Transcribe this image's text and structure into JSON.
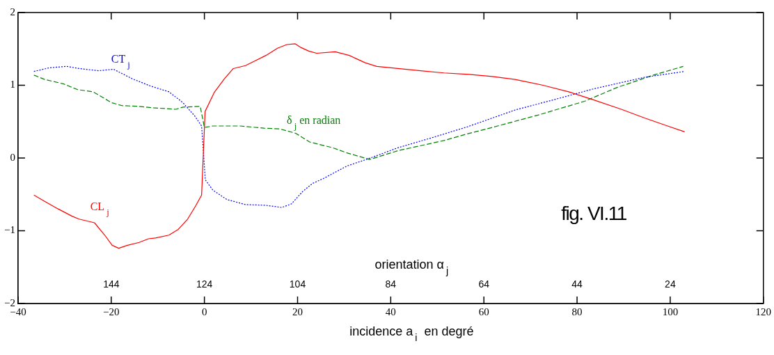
{
  "chart_data": {
    "type": "line",
    "xlabel": "incidence a$_{i}$  en degré",
    "x2label": "orientation α$_{j}$",
    "xlim": [
      -40,
      120
    ],
    "xticks": [
      {
        "value": -40,
        "label": "−40"
      },
      {
        "value": -20,
        "label": "−20"
      },
      0,
      20,
      40,
      60,
      80,
      100,
      120
    ],
    "x2lim": [
      164,
      4
    ],
    "x2ticks": [
      144,
      124,
      104,
      84,
      64,
      44,
      24
    ],
    "ylim": [
      -2,
      2
    ],
    "yticks": [
      {
        "value": -2,
        "label": "−2"
      },
      {
        "value": -1,
        "label": "−1"
      },
      0,
      1,
      2
    ],
    "grid": false,
    "legend": false,
    "marker": "none",
    "annotations": [
      "fig. VI.11"
    ],
    "series": [
      {
        "name": "CL$_{j}$",
        "color": "#ff0000",
        "line_style": "solid",
        "x": [
          -36.6,
          -33.9,
          -31.4,
          -28.4,
          -26.9,
          -23.6,
          -21.4,
          -19.8,
          -18.4,
          -16.5,
          -14,
          -12,
          -10.5,
          -7.6,
          -5.6,
          -3.6,
          -1.9,
          -0.6,
          0.15,
          2.1,
          4.3,
          6.2,
          8.8,
          10.7,
          13.2,
          15.7,
          17.7,
          19.5,
          20.7,
          22.4,
          24.1,
          28.1,
          31.1,
          34.5,
          37,
          41.5,
          46.4,
          51.4,
          56.8,
          61.8,
          66.7,
          72.7,
          78.2,
          83.5,
          89.5,
          94.5,
          99,
          103.1
        ],
        "values": [
          -0.51,
          -0.61,
          -0.7,
          -0.8,
          -0.84,
          -0.89,
          -1.06,
          -1.2,
          -1.24,
          -1.2,
          -1.16,
          -1.11,
          -1.1,
          -1.06,
          -0.98,
          -0.84,
          -0.66,
          -0.51,
          0.64,
          0.9,
          1.09,
          1.23,
          1.27,
          1.33,
          1.41,
          1.51,
          1.56,
          1.57,
          1.52,
          1.47,
          1.44,
          1.46,
          1.41,
          1.31,
          1.26,
          1.23,
          1.2,
          1.17,
          1.15,
          1.12,
          1.08,
          1,
          0.91,
          0.8,
          0.67,
          0.55,
          0.45,
          0.36
        ]
      },
      {
        "name": "CT$_{j}$",
        "color": "#0000ff",
        "line_style": "dotted",
        "x": [
          -36.6,
          -33.3,
          -29.6,
          -26.9,
          -22.7,
          -19.5,
          -15.5,
          -11.6,
          -7.6,
          -4.6,
          -2.1,
          -0.6,
          0.2,
          1.8,
          4.8,
          8.8,
          13.2,
          16.6,
          18.7,
          21.1,
          23.2,
          25.6,
          30.6,
          35.2,
          41.5,
          48.9,
          56.5,
          66.7,
          76.7,
          83.5,
          94.5,
          103.1
        ],
        "values": [
          1.19,
          1.24,
          1.26,
          1.23,
          1.2,
          1.22,
          1.09,
          0.99,
          0.91,
          0.76,
          0.58,
          0.44,
          -0.3,
          -0.44,
          -0.57,
          -0.64,
          -0.65,
          -0.68,
          -0.63,
          -0.46,
          -0.35,
          -0.28,
          -0.11,
          -0.01,
          0.14,
          0.28,
          0.43,
          0.66,
          0.83,
          0.95,
          1.11,
          1.19
        ]
      },
      {
        "name": "δ$_{j}$ en radian",
        "color": "#008000",
        "line_style": "dashed",
        "x": [
          -36.6,
          -34.3,
          -30.3,
          -27.2,
          -23.9,
          -19.9,
          -17.7,
          -14,
          -11,
          -6.1,
          -4.6,
          -0.9,
          0,
          1.8,
          7.7,
          12.8,
          16.2,
          19.6,
          22.6,
          27.6,
          30.6,
          35.5,
          41.5,
          51.4,
          56.3,
          61.8,
          71.6,
          81.6,
          88.6,
          96.4,
          102.8
        ],
        "values": [
          1.14,
          1.08,
          1.02,
          0.94,
          0.91,
          0.76,
          0.72,
          0.71,
          0.69,
          0.67,
          0.7,
          0.71,
          0.42,
          0.44,
          0.44,
          0.41,
          0.4,
          0.34,
          0.22,
          0.14,
          0.07,
          -0.02,
          0.1,
          0.24,
          0.33,
          0.42,
          0.59,
          0.78,
          0.97,
          1.14,
          1.26
        ]
      }
    ]
  }
}
